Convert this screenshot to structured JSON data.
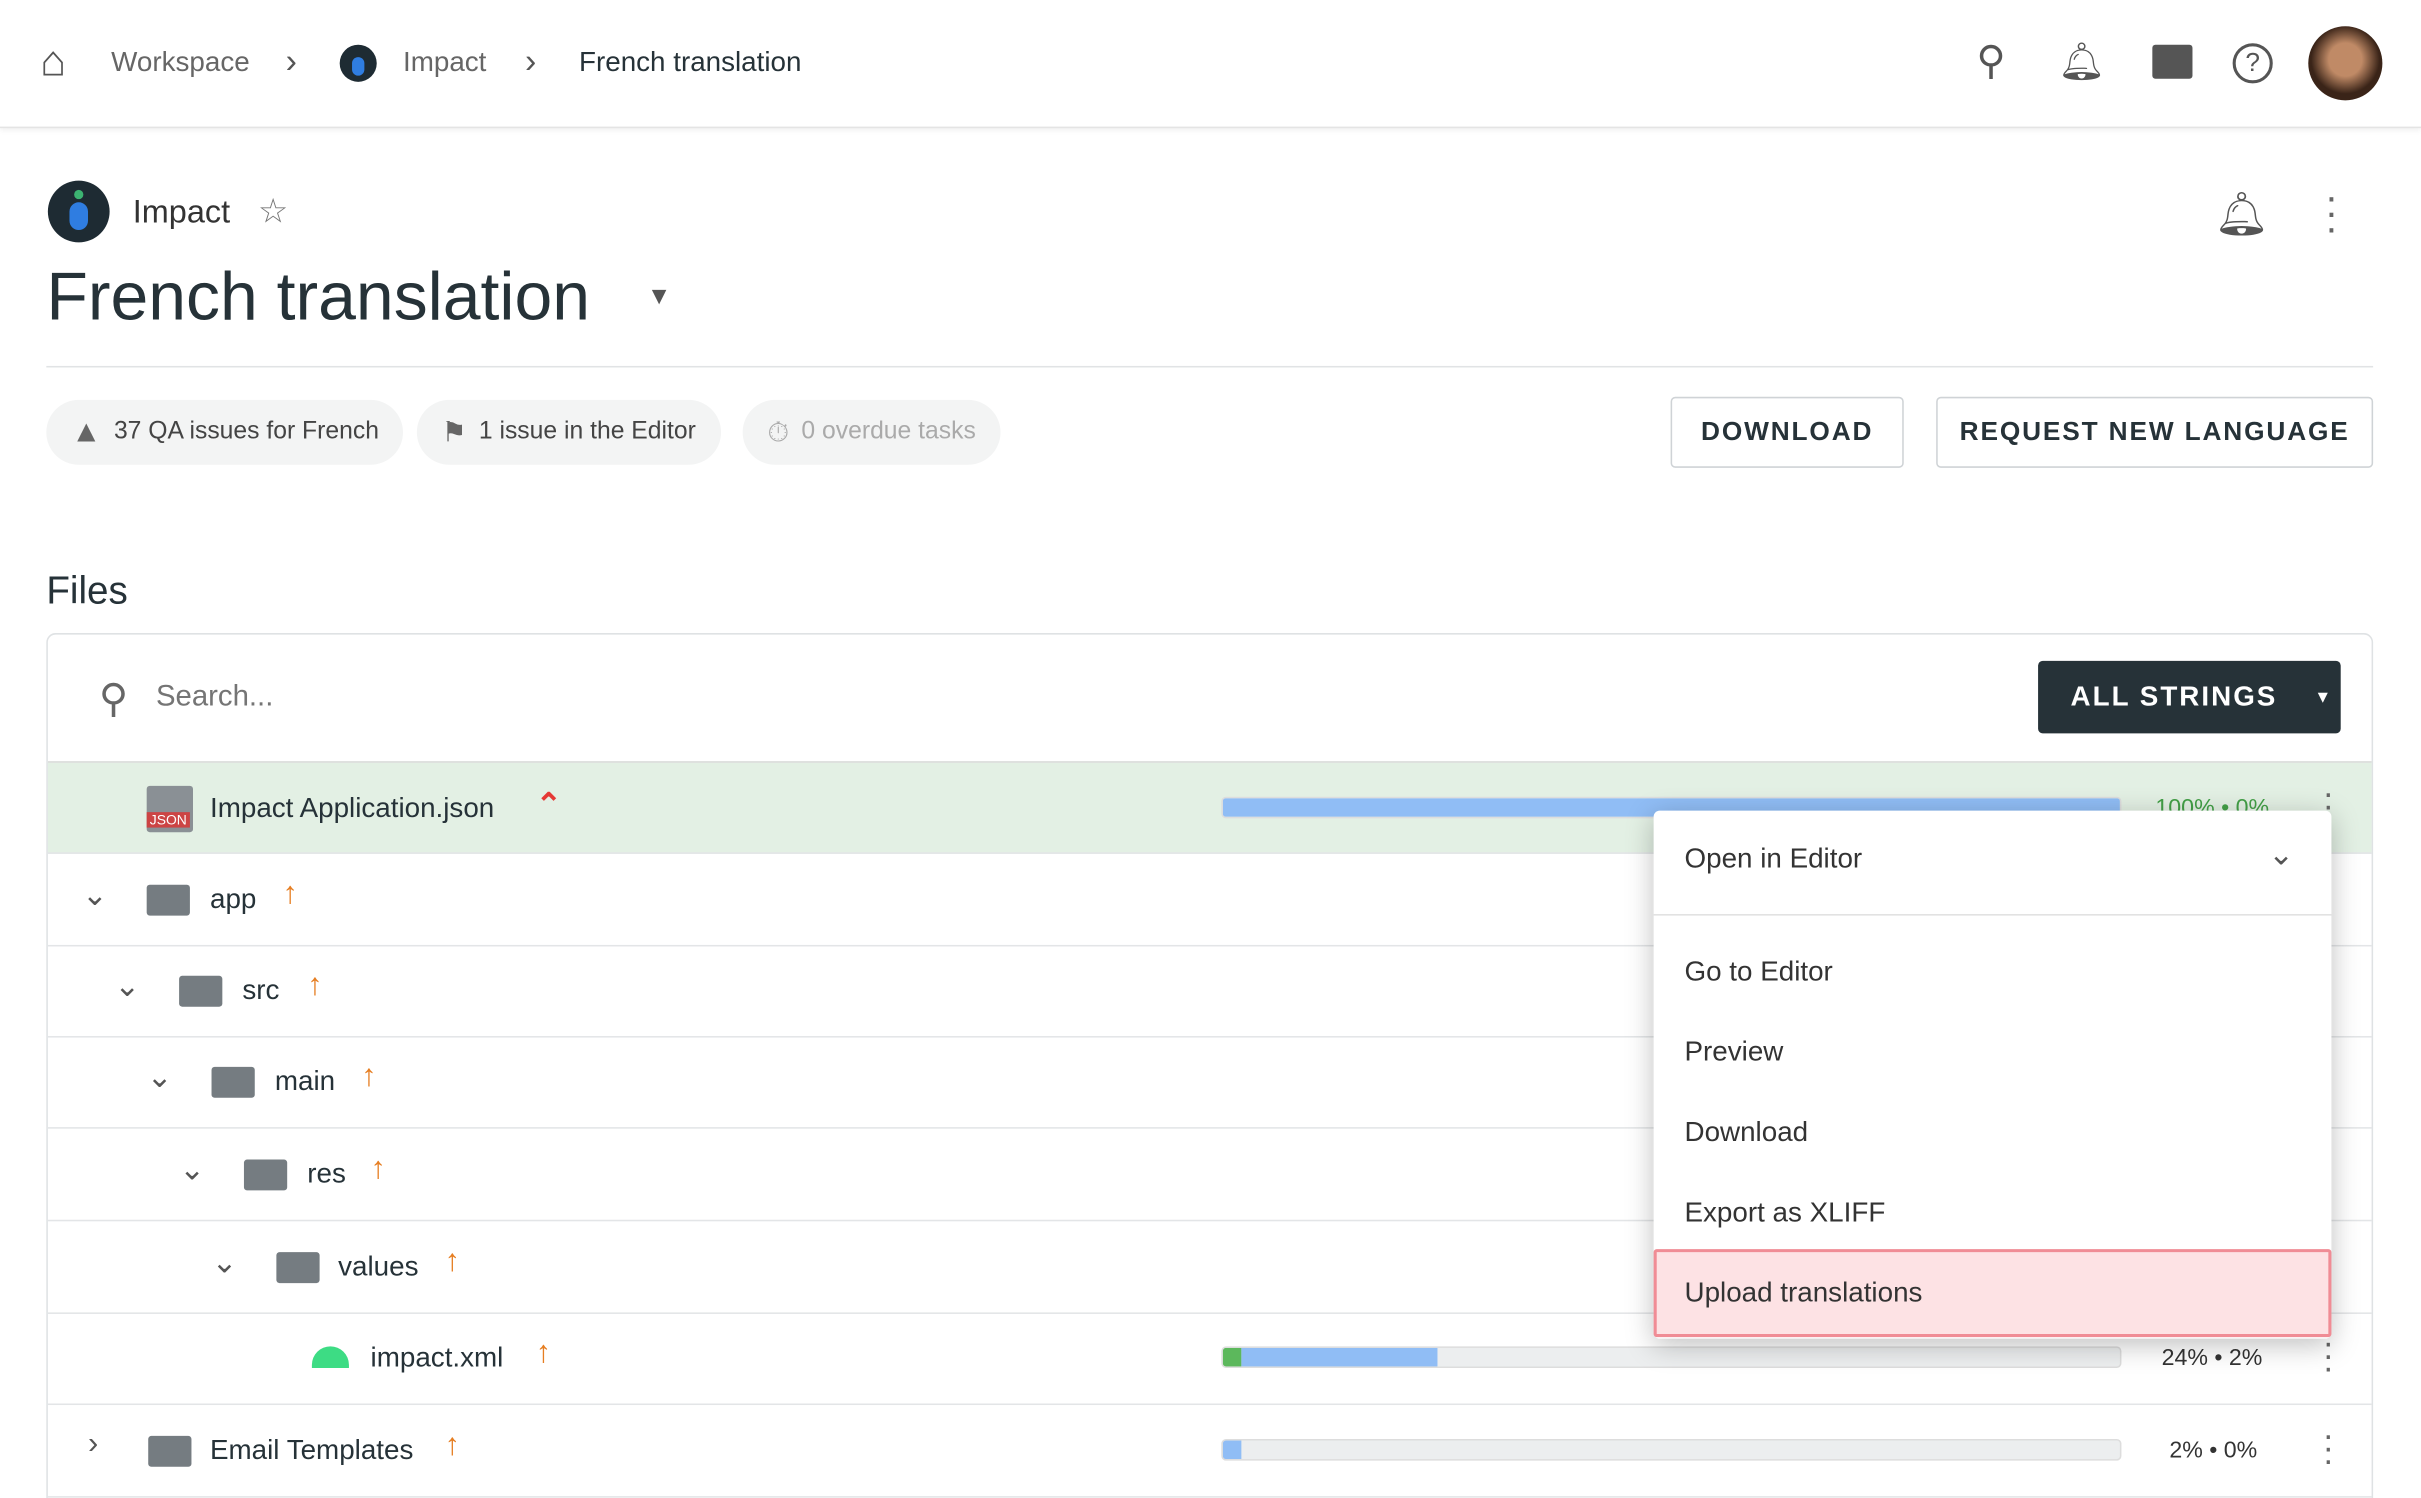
{
  "breadcrumb": {
    "items": [
      "Workspace",
      "Impact",
      "French translation"
    ]
  },
  "project": {
    "name": "Impact",
    "title": "French translation"
  },
  "chips": [
    {
      "icon": "warning-icon",
      "label": "37 QA issues for French"
    },
    {
      "icon": "flag-icon",
      "label": "1 issue in the Editor"
    },
    {
      "icon": "stopwatch-icon",
      "label": "0 overdue tasks"
    }
  ],
  "buttons": {
    "download": "DOWNLOAD",
    "request": "REQUEST NEW LANGUAGE",
    "filter": "ALL STRINGS"
  },
  "files": {
    "heading": "Files",
    "search_placeholder": "Search...",
    "rows": [
      {
        "name": "Impact Application.json",
        "type": "json",
        "progress": "100% • 0%",
        "translated": 100,
        "approved": 0
      },
      {
        "name": "app",
        "type": "folder"
      },
      {
        "name": "src",
        "type": "folder"
      },
      {
        "name": "main",
        "type": "folder"
      },
      {
        "name": "res",
        "type": "folder"
      },
      {
        "name": "values",
        "type": "folder"
      },
      {
        "name": "impact.xml",
        "type": "android",
        "progress": "24% • 2%",
        "translated": 24,
        "approved": 2
      },
      {
        "name": "Email Templates",
        "type": "folder",
        "progress": "2% • 0%",
        "translated": 2,
        "approved": 0
      }
    ]
  },
  "menu": {
    "head": "Open in Editor",
    "items": [
      "Go to Editor",
      "Preview",
      "Download",
      "Export as XLIFF",
      "Upload translations"
    ],
    "highlighted": "Upload translations"
  },
  "colors": {
    "translated": "#90bdf5",
    "approved": "#5cb85c",
    "highlight": "#fde2e4",
    "dark": "#263238"
  }
}
